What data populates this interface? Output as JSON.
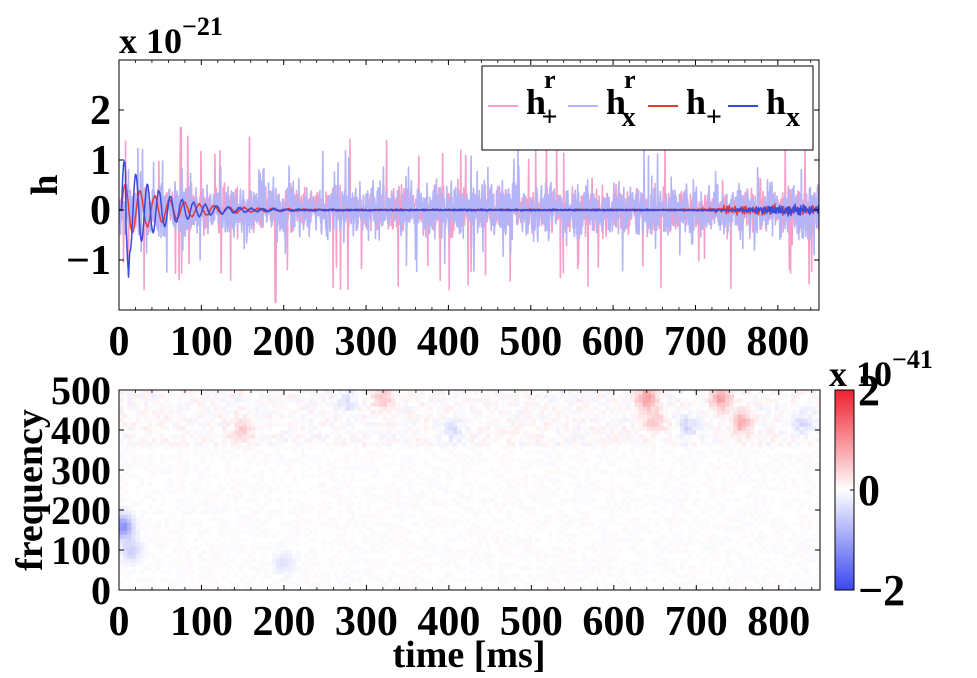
{
  "chart_data": [
    {
      "type": "line",
      "exponent_label": "x 10",
      "exponent_power": "−21",
      "ylabel": "h",
      "xlim": [
        0,
        850
      ],
      "ylim": [
        -2,
        3
      ],
      "x_ticks": [
        "0",
        "100",
        "200",
        "300",
        "400",
        "500",
        "600",
        "700",
        "800"
      ],
      "y_ticks": [
        "−1",
        "0",
        "1",
        "2"
      ],
      "y_tick_values": [
        -1,
        0,
        1,
        2
      ],
      "legend": {
        "placement": "top-right",
        "entries": [
          {
            "base": "h",
            "sup": "r",
            "sub": "+",
            "color": "#f4a0c8"
          },
          {
            "base": "h",
            "sup": "r",
            "sub": "x",
            "color": "#b4b4f8"
          },
          {
            "base": "h",
            "sup": "",
            "sub": "+",
            "color": "#e83a3a"
          },
          {
            "base": "h",
            "sup": "",
            "sub": "x",
            "color": "#3a4ad8"
          }
        ]
      },
      "series": [
        {
          "name": "h^r_+",
          "color": "#f4a0c8",
          "kind": "noise",
          "typical_amplitude": 0.45,
          "spike_amplitude": 1.6,
          "min_value": -1.85,
          "max_value": 1.65
        },
        {
          "name": "h^r_x",
          "color": "#b4b4f8",
          "kind": "noise",
          "typical_amplitude": 0.55,
          "spike_amplitude": 1.25
        },
        {
          "name": "h_+",
          "color": "#e83a3a",
          "kind": "ringdown",
          "peak_time_ms": 10,
          "peak_amplitude": 0.55,
          "decay_ms": 60,
          "late_ripple_start_ms": 690,
          "late_amplitude": 0.1
        },
        {
          "name": "h_x",
          "color": "#3a4ad8",
          "kind": "ringdown",
          "peak_time_ms": 10,
          "peak_amplitude": 1.05,
          "min_amplitude": -1.35,
          "decay_ms": 45,
          "late_ripple_start_ms": 740,
          "late_amplitude": 0.12
        }
      ]
    },
    {
      "type": "heatmap",
      "xlabel": "time [ms]",
      "ylabel": "frequency",
      "xlim": [
        0,
        850
      ],
      "ylim": [
        0,
        500
      ],
      "x_ticks": [
        "0",
        "100",
        "200",
        "300",
        "400",
        "500",
        "600",
        "700",
        "800"
      ],
      "y_ticks": [
        "0",
        "100",
        "200",
        "300",
        "400",
        "500"
      ],
      "y_tick_values": [
        0,
        100,
        200,
        300,
        400,
        500
      ],
      "colorbar": {
        "exponent_label": "x 10",
        "exponent_power": "−41",
        "ticks": [
          "−2",
          "0",
          "2"
        ],
        "tick_values": [
          -2,
          0,
          2
        ],
        "range": [
          -2,
          2
        ],
        "colormap": [
          "#3a46f0",
          "#ffffff",
          "#f0202e"
        ]
      },
      "features": [
        {
          "time_ms": 5,
          "freq": 160,
          "value": -1.2
        },
        {
          "time_ms": 15,
          "freq": 100,
          "value": -0.5
        },
        {
          "time_ms": 200,
          "freq": 70,
          "value": -0.3
        },
        {
          "time_ms": 320,
          "freq": 480,
          "value": 0.5
        },
        {
          "time_ms": 640,
          "freq": 480,
          "value": 0.9
        },
        {
          "time_ms": 730,
          "freq": 480,
          "value": 0.8
        },
        {
          "time_ms": 755,
          "freq": 420,
          "value": 0.7
        },
        {
          "time_ms": 650,
          "freq": 420,
          "value": 0.5
        },
        {
          "time_ms": 690,
          "freq": 410,
          "value": -0.4
        },
        {
          "time_ms": 830,
          "freq": 420,
          "value": -0.4
        },
        {
          "time_ms": 275,
          "freq": 470,
          "value": -0.3
        },
        {
          "time_ms": 405,
          "freq": 400,
          "value": -0.3
        },
        {
          "time_ms": 150,
          "freq": 400,
          "value": 0.4
        }
      ]
    }
  ]
}
